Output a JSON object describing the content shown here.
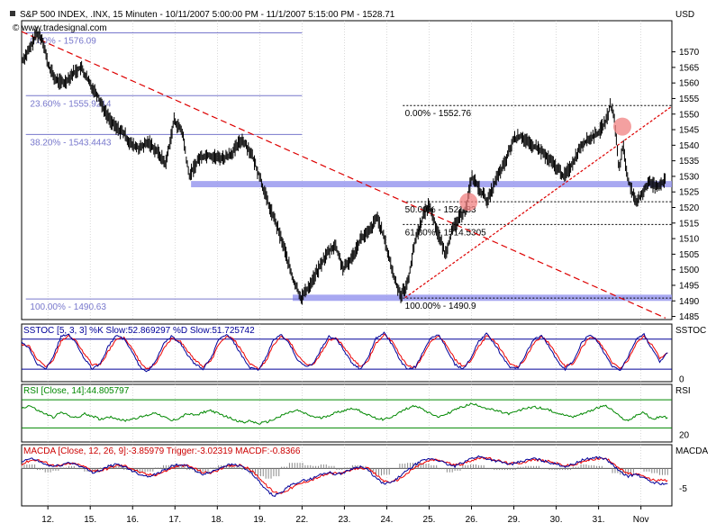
{
  "header": {
    "title": "S&P 500 INDEX, .INX, 15 Minuten - 10/11/2007 5:00:00 PM - 11/1/2007 5:15:00 PM - 1528.71",
    "copyright": "© www.tradesignal.com",
    "currency": "USD"
  },
  "colors": {
    "background": "#ffffff",
    "grid": "#c0c0c0",
    "fib": "#7777cc",
    "trend_red": "#dd0000",
    "band": "#9999ee",
    "stoch_k": "#000099",
    "stoch_d": "#ee0000",
    "rsi": "#008800",
    "macd": "#000099",
    "trigger": "#ee0000",
    "macdf": "#888888",
    "circle": "#f08080"
  },
  "chart_data": [
    {
      "type": "line",
      "title": "S&P 500 INDEX, .INX, 15 Minuten - 10/11/2007 5:00:00 PM - 11/1/2007 5:15:00 PM - 1528.71",
      "ylabel": "USD",
      "ylim": [
        1484,
        1580
      ],
      "y_ticks": [
        1485,
        1490,
        1495,
        1500,
        1505,
        1510,
        1515,
        1520,
        1525,
        1530,
        1535,
        1540,
        1545,
        1550,
        1555,
        1560,
        1565,
        1570
      ],
      "x_ticks": [
        "12.",
        "15.",
        "16.",
        "17.",
        "18.",
        "19.",
        "22.",
        "23.",
        "24.",
        "25.",
        "26.",
        "29.",
        "30.",
        "31.",
        "Nov"
      ],
      "x_tick_index": [
        0.62,
        1.62,
        2.62,
        3.62,
        4.62,
        5.62,
        6.62,
        7.62,
        8.62,
        9.62,
        10.62,
        11.62,
        12.62,
        13.62,
        14.62
      ],
      "x_range": [
        0,
        15.35
      ],
      "price": {
        "x": [
          0,
          0.2,
          0.35,
          0.5,
          0.62,
          0.8,
          1.0,
          1.2,
          1.4,
          1.6,
          1.8,
          2.0,
          2.2,
          2.4,
          2.6,
          2.8,
          3.0,
          3.2,
          3.4,
          3.6,
          3.8,
          3.95,
          4.2,
          4.4,
          4.6,
          4.8,
          5.0,
          5.2,
          5.4,
          5.62,
          5.8,
          6.0,
          6.2,
          6.4,
          6.6,
          6.8,
          7.0,
          7.2,
          7.4,
          7.6,
          7.8,
          8.0,
          8.2,
          8.4,
          8.6,
          8.8,
          8.95,
          9.1,
          9.3,
          9.5,
          9.62,
          9.8,
          10.0,
          10.15,
          10.3,
          10.5,
          10.62,
          10.8,
          11.0,
          11.2,
          11.4,
          11.62,
          11.8,
          12.0,
          12.2,
          12.4,
          12.62,
          12.8,
          13.0,
          13.2,
          13.4,
          13.62,
          13.8,
          13.9,
          14.0,
          14.1,
          14.2,
          14.3,
          14.5,
          14.62,
          14.8,
          15.0,
          15.2
        ],
        "values": [
          1567,
          1571,
          1576,
          1574,
          1566,
          1561,
          1560,
          1563,
          1565,
          1560,
          1556,
          1550,
          1546,
          1544,
          1540,
          1539,
          1541,
          1538,
          1534,
          1548,
          1544,
          1530,
          1536,
          1537,
          1536,
          1536,
          1538,
          1542,
          1538,
          1530,
          1522,
          1515,
          1507,
          1497,
          1491,
          1495,
          1500,
          1505,
          1508,
          1500,
          1504,
          1510,
          1512,
          1517,
          1508,
          1497,
          1492,
          1495,
          1510,
          1518,
          1521,
          1513,
          1505,
          1512,
          1516,
          1520,
          1530,
          1526,
          1522,
          1529,
          1534,
          1542,
          1543,
          1540,
          1539,
          1536,
          1533,
          1530,
          1534,
          1540,
          1542,
          1544,
          1548,
          1553,
          1548,
          1532,
          1540,
          1530,
          1521,
          1524,
          1528,
          1527,
          1528.71
        ]
      },
      "fib_left": {
        "levels": [
          {
            "pct": "0.00% - 1576.09",
            "value": 1576.09
          },
          {
            "pct": "23.60% - 1555.9214",
            "value": 1555.9214
          },
          {
            "pct": "38.20% - 1543.4443",
            "value": 1543.4443
          },
          {
            "pct": "100.00% - 1490.63",
            "value": 1490.63
          }
        ]
      },
      "fib_right": {
        "levels": [
          {
            "pct": "0.00% - 1552.76",
            "value": 1552.76
          },
          {
            "pct": "50.00% - 1521.83",
            "value": 1521.83
          },
          {
            "pct": "61.80% - 1514.5305",
            "value": 1514.5305
          },
          {
            "pct": "100.00% - 1490.9",
            "value": 1490.9
          }
        ]
      },
      "bands": [
        {
          "value_low": 1526.5,
          "value_high": 1528.5,
          "x_start": 4.0,
          "x_end": 15.35
        },
        {
          "value_low": 1490.0,
          "value_high": 1492.0,
          "x_start": 6.4,
          "x_end": 15.35
        }
      ],
      "trendline_down": {
        "x": [
          0.0,
          15.2
        ],
        "values": [
          1576.5,
          1484.5
        ]
      },
      "trendline_up": {
        "x": [
          9.05,
          15.35
        ],
        "values": [
          1491.0,
          1552.5
        ]
      },
      "highlight_points": [
        {
          "x": 10.55,
          "value": 1521.8
        },
        {
          "x": 14.18,
          "value": 1546.0
        }
      ]
    },
    {
      "type": "line",
      "title": "SSTOC [5, 3, 3] %K Slow:52.869297 %D Slow:51.725742",
      "label": "SSTOC",
      "ylim": [
        -5,
        110
      ],
      "y_ticks": [
        0
      ],
      "bands": [
        20,
        80
      ],
      "series": [
        {
          "name": "%K Slow",
          "values": [
            75,
            60,
            30,
            20,
            45,
            85,
            90,
            70,
            40,
            20,
            30,
            65,
            88,
            80,
            55,
            25,
            15,
            35,
            70,
            85,
            75,
            50,
            30,
            20,
            40,
            78,
            90,
            72,
            45,
            22,
            18,
            42,
            80,
            88,
            70,
            40,
            25,
            30,
            60,
            85,
            80,
            55,
            30,
            20,
            45,
            82,
            92,
            70,
            38,
            18,
            25,
            55,
            85,
            88,
            60,
            30,
            20,
            40,
            75,
            90,
            72,
            45,
            25,
            22,
            50,
            80,
            86,
            65,
            35,
            20,
            35,
            70,
            88,
            78,
            50,
            25,
            18,
            45,
            80,
            90,
            60,
            35,
            52.87
          ]
        },
        {
          "name": "%D Slow",
          "values": [
            70,
            65,
            40,
            25,
            38,
            75,
            88,
            75,
            50,
            28,
            28,
            55,
            80,
            82,
            62,
            35,
            20,
            30,
            60,
            80,
            78,
            58,
            38,
            25,
            35,
            68,
            86,
            78,
            55,
            30,
            20,
            35,
            70,
            85,
            75,
            50,
            30,
            28,
            52,
            78,
            82,
            62,
            40,
            25,
            38,
            72,
            88,
            76,
            48,
            25,
            24,
            48,
            78,
            86,
            68,
            40,
            25,
            35,
            65,
            85,
            78,
            55,
            32,
            24,
            42,
            72,
            84,
            72,
            45,
            26,
            30,
            60,
            82,
            80,
            58,
            32,
            22,
            38,
            72,
            86,
            68,
            42,
            51.73
          ]
        }
      ]
    },
    {
      "type": "line",
      "title": "RSI [Close, 14]:44.805797",
      "label": "RSI",
      "ylim": [
        10,
        92
      ],
      "y_ticks": [
        20
      ],
      "bands": [
        30,
        70
      ],
      "series": [
        {
          "name": "RSI",
          "values": [
            58,
            62,
            55,
            50,
            45,
            52,
            48,
            44,
            50,
            47,
            42,
            46,
            44,
            40,
            43,
            45,
            48,
            52,
            46,
            40,
            44,
            50,
            48,
            52,
            55,
            50,
            46,
            42,
            38,
            40,
            36,
            38,
            42,
            48,
            52,
            55,
            50,
            46,
            44,
            48,
            52,
            55,
            58,
            54,
            48,
            44,
            42,
            46,
            52,
            58,
            62,
            56,
            50,
            46,
            50,
            56,
            60,
            64,
            62,
            58,
            55,
            52,
            50,
            54,
            58,
            60,
            58,
            55,
            52,
            48,
            46,
            50,
            54,
            58,
            62,
            55,
            45,
            40,
            48,
            52,
            42,
            46,
            44.81
          ]
        }
      ]
    },
    {
      "type": "line",
      "title": "MACDA [Close, 12, 26, 9]:-3.85979 Trigger:-3.02319 MACDF:-0.8366",
      "label": "MACDA",
      "ylim": [
        -9.5,
        6
      ],
      "y_ticks": [
        -5
      ],
      "series": [
        {
          "name": "MACDA",
          "values": [
            1.5,
            2.5,
            2.0,
            1.0,
            0.5,
            0.8,
            1.5,
            1.0,
            0.0,
            -1.0,
            -0.5,
            0.5,
            1.0,
            0.5,
            -0.5,
            -1.5,
            -2.0,
            -1.5,
            -0.5,
            0.5,
            1.0,
            0.5,
            -0.5,
            -1.5,
            -1.0,
            0.0,
            0.8,
            1.0,
            0.5,
            -1.0,
            -3.0,
            -5.5,
            -7.0,
            -6.0,
            -4.5,
            -3.5,
            -3.0,
            -2.5,
            -1.5,
            -1.0,
            -1.5,
            -1.0,
            0.0,
            0.5,
            -0.5,
            -2.5,
            -4.0,
            -3.5,
            -2.0,
            -0.5,
            1.0,
            2.0,
            2.5,
            2.0,
            1.0,
            0.5,
            1.5,
            2.5,
            3.0,
            2.5,
            2.0,
            1.5,
            1.0,
            1.5,
            2.0,
            2.5,
            2.0,
            1.5,
            1.0,
            0.5,
            1.0,
            2.0,
            2.5,
            2.8,
            2.5,
            1.0,
            -1.0,
            -2.0,
            -1.5,
            -2.5,
            -3.5,
            -3.86,
            -3.86
          ]
        },
        {
          "name": "Trigger",
          "values": [
            1.0,
            2.0,
            2.2,
            1.5,
            0.8,
            0.7,
            1.2,
            1.1,
            0.4,
            -0.5,
            -0.6,
            0.0,
            0.7,
            0.7,
            0.0,
            -1.0,
            -1.6,
            -1.6,
            -0.9,
            0.0,
            0.7,
            0.7,
            0.0,
            -1.0,
            -1.1,
            -0.4,
            0.4,
            0.8,
            0.7,
            -0.3,
            -2.0,
            -4.2,
            -6.0,
            -6.2,
            -5.2,
            -4.2,
            -3.4,
            -2.8,
            -2.0,
            -1.3,
            -1.3,
            -1.1,
            -0.4,
            0.2,
            -0.1,
            -1.6,
            -3.2,
            -3.5,
            -2.6,
            -1.2,
            0.3,
            1.4,
            2.1,
            2.1,
            1.5,
            0.8,
            1.1,
            2.0,
            2.6,
            2.6,
            2.2,
            1.7,
            1.2,
            1.3,
            1.7,
            2.2,
            2.1,
            1.7,
            1.2,
            0.7,
            0.8,
            1.5,
            2.1,
            2.5,
            2.5,
            1.6,
            -0.2,
            -1.4,
            -1.5,
            -2.1,
            -2.9,
            -3.02,
            -3.02
          ]
        }
      ]
    }
  ]
}
